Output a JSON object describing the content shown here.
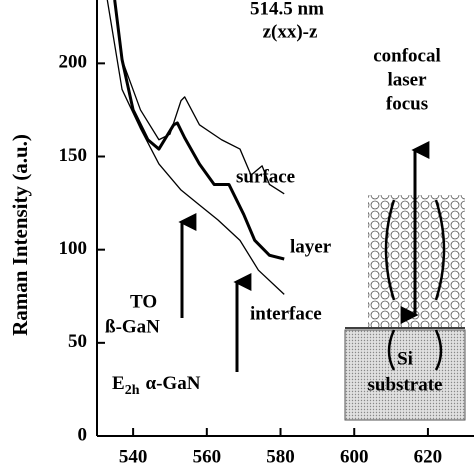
{
  "chart_data": {
    "type": "line",
    "ylabel": "Raman Intensity (a.u.)",
    "xlim": [
      530.2,
      632.5
    ],
    "ylim": [
      0,
      234
    ],
    "xticks": [
      540,
      560,
      580,
      600,
      620
    ],
    "yticks": [
      0,
      50,
      100,
      150,
      200
    ],
    "series": [
      {
        "name": "surface",
        "color": "#000000",
        "width": 1.3,
        "x": [
          535,
          537,
          542,
          547,
          550,
          553,
          554,
          558,
          564,
          569,
          572,
          575,
          577,
          581
        ],
        "values": [
          234,
          202,
          175,
          159,
          162,
          180,
          182,
          167,
          159,
          154,
          140,
          145,
          135,
          130
        ]
      },
      {
        "name": "layer",
        "color": "#000000",
        "width": 3,
        "x": [
          535,
          537,
          540,
          544,
          547,
          551,
          552,
          554,
          558,
          562,
          566,
          570,
          573,
          577,
          581
        ],
        "values": [
          234,
          202,
          175,
          159,
          154,
          167,
          168,
          160,
          146,
          135,
          135,
          119,
          105,
          97,
          95
        ]
      },
      {
        "name": "interface",
        "color": "#000000",
        "width": 1.3,
        "x": [
          533,
          537,
          542,
          547,
          553,
          558,
          563,
          569,
          574,
          581
        ],
        "values": [
          234,
          186,
          165,
          146,
          132,
          124,
          116,
          105,
          89,
          76
        ]
      }
    ],
    "annotations": {
      "wavelength": "514.5  nm",
      "geometry": "z(xx)-z",
      "focus": [
        "confocal",
        "laser",
        "focus"
      ],
      "to_label": "TO",
      "beta": "ß-GaN",
      "e": "E",
      "e_sub": "2h",
      "alpha": "α-GaN",
      "si": "Si",
      "substrate": "substrate"
    }
  }
}
